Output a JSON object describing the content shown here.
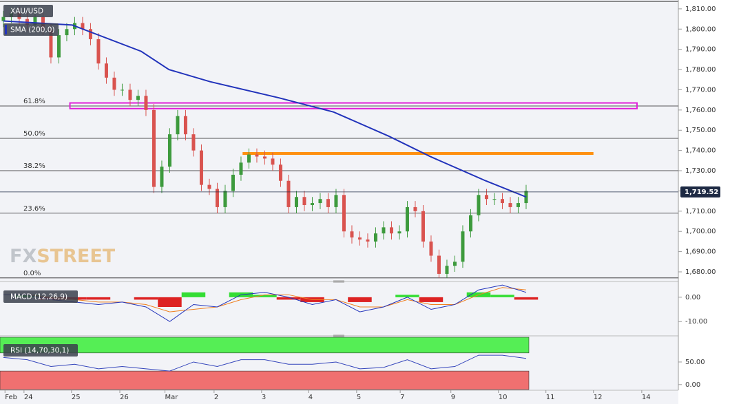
{
  "chart_data": [
    {
      "type": "candlestick",
      "title": "XAU/USD",
      "up_color": "#3d9a3d",
      "down_color": "#d9534f",
      "open": [
        1804,
        1806,
        1808,
        1805,
        1802,
        1806,
        1800,
        1786,
        1797,
        1800,
        1803,
        1800,
        1795,
        1783,
        1776,
        1770,
        1770,
        1765,
        1767,
        1760,
        1722,
        1732,
        1748,
        1757,
        1748,
        1740,
        1723,
        1721,
        1712,
        1720,
        1728,
        1734,
        1738,
        1737,
        1736,
        1733,
        1725,
        1712,
        1717,
        1713,
        1714,
        1716,
        1712,
        1718,
        1700,
        1697,
        1696,
        1695,
        1699,
        1702,
        1699,
        1700,
        1712,
        1710,
        1695,
        1688,
        1679,
        1683,
        1685,
        1700,
        1708,
        1718,
        1716,
        1716,
        1714,
        1712,
        1714
      ],
      "high": [
        1809,
        1811,
        1811,
        1808,
        1809,
        1809,
        1803,
        1800,
        1803,
        1806,
        1806,
        1803,
        1798,
        1786,
        1779,
        1773,
        1773,
        1770,
        1770,
        1763,
        1735,
        1751,
        1760,
        1760,
        1751,
        1743,
        1726,
        1724,
        1723,
        1731,
        1737,
        1741,
        1741,
        1740,
        1739,
        1736,
        1728,
        1720,
        1720,
        1717,
        1719,
        1719,
        1721,
        1721,
        1703,
        1700,
        1699,
        1702,
        1705,
        1705,
        1703,
        1715,
        1715,
        1713,
        1698,
        1691,
        1686,
        1688,
        1703,
        1711,
        1721,
        1721,
        1719,
        1719,
        1717,
        1717,
        1723
      ],
      "low": [
        1801,
        1803,
        1802,
        1799,
        1799,
        1797,
        1783,
        1783,
        1794,
        1797,
        1797,
        1792,
        1780,
        1773,
        1767,
        1767,
        1762,
        1762,
        1757,
        1719,
        1719,
        1729,
        1745,
        1745,
        1737,
        1720,
        1718,
        1709,
        1709,
        1717,
        1725,
        1731,
        1734,
        1733,
        1730,
        1722,
        1709,
        1709,
        1710,
        1710,
        1711,
        1709,
        1709,
        1697,
        1694,
        1693,
        1692,
        1692,
        1696,
        1696,
        1696,
        1697,
        1707,
        1692,
        1685,
        1677,
        1677,
        1680,
        1682,
        1697,
        1705,
        1713,
        1713,
        1711,
        1709,
        1709,
        1711
      ],
      "close": [
        1806,
        1808,
        1805,
        1802,
        1806,
        1800,
        1786,
        1797,
        1800,
        1803,
        1800,
        1795,
        1783,
        1776,
        1770,
        1770,
        1765,
        1767,
        1760,
        1722,
        1732,
        1748,
        1757,
        1748,
        1740,
        1723,
        1721,
        1712,
        1720,
        1728,
        1734,
        1738,
        1737,
        1736,
        1733,
        1725,
        1712,
        1717,
        1713,
        1714,
        1716,
        1712,
        1718,
        1700,
        1697,
        1696,
        1695,
        1699,
        1702,
        1699,
        1700,
        1712,
        1710,
        1695,
        1688,
        1679,
        1683,
        1685,
        1700,
        1708,
        1718,
        1716,
        1716,
        1714,
        1712,
        1714,
        1720
      ],
      "overlay": {
        "name": "SMA (200,0)",
        "color": "#2233bb",
        "x": [
          0,
          8.7,
          17.4,
          20.9,
          26.1,
          34.8,
          41.7,
          48.7,
          53.9,
          60.9,
          66
        ],
        "values": [
          1804,
          1802,
          1789,
          1780,
          1774,
          1766,
          1759,
          1747,
          1737,
          1725,
          1717
        ]
      },
      "levels": [
        {
          "label": "61.8%",
          "value": 1762
        },
        {
          "label": "50.0%",
          "value": 1746
        },
        {
          "label": "38.2%",
          "value": 1730
        },
        {
          "label": "23.6%",
          "value": 1709
        },
        {
          "label": "0.0%",
          "value": 1677
        }
      ],
      "zone": {
        "color": "#e020d8",
        "x": [
          8.4,
          80
        ],
        "from": 1760.7,
        "to": 1763.5
      },
      "resistance": {
        "color": "#ff9010",
        "x": [
          30.2,
          74.5
        ],
        "value": 1738.5
      },
      "last_price": {
        "value": 1719.52,
        "label": "1,719.52"
      },
      "watermark": [
        "FX",
        "STREET"
      ],
      "xlim": [
        -0.43,
        85.22
      ],
      "xticks": [
        {
          "value": 0.2,
          "label": "Feb"
        },
        {
          "value": 2.6,
          "label": "24"
        },
        {
          "value": 8.6,
          "label": "25"
        },
        {
          "value": 14.7,
          "label": "26"
        },
        {
          "value": 20.4,
          "label": "Mar"
        },
        {
          "value": 26.6,
          "label": "2"
        },
        {
          "value": 32.6,
          "label": "3"
        },
        {
          "value": 38.5,
          "label": "4"
        },
        {
          "value": 44.6,
          "label": "5"
        },
        {
          "value": 50.1,
          "label": "7"
        },
        {
          "value": 56.5,
          "label": "9"
        },
        {
          "value": 62.5,
          "label": "10"
        },
        {
          "value": 68.5,
          "label": "11"
        },
        {
          "value": 74.5,
          "label": "12"
        },
        {
          "value": 80.6,
          "label": "14"
        }
      ],
      "ylim": [
        1676.6,
        1813.7
      ],
      "yticks": [
        {
          "value": 1680,
          "label": "1,680.00"
        },
        {
          "value": 1690,
          "label": "1,690.00"
        },
        {
          "value": 1700,
          "label": "1,700.00"
        },
        {
          "value": 1710,
          "label": "1,710.00"
        },
        {
          "value": 1720,
          "label": "1,720.00"
        },
        {
          "value": 1730,
          "label": "1,730.00"
        },
        {
          "value": 1740,
          "label": "1,740.00"
        },
        {
          "value": 1750,
          "label": "1,750.00"
        },
        {
          "value": 1760,
          "label": "1,760.00"
        },
        {
          "value": 1770,
          "label": "1,770.00"
        },
        {
          "value": 1780,
          "label": "1,780.00"
        },
        {
          "value": 1790,
          "label": "1,790.00"
        },
        {
          "value": 1800,
          "label": "1,800.00"
        },
        {
          "value": 1810,
          "label": "1,810.00"
        }
      ]
    },
    {
      "type": "macd",
      "title": "MACD (12,26,9)",
      "x": [
        0,
        3,
        6,
        9,
        12,
        15,
        18,
        21,
        24,
        27,
        30,
        33,
        36,
        39,
        42,
        45,
        48,
        51,
        54,
        57,
        60,
        63,
        66
      ],
      "histogram": [
        0,
        1,
        -1,
        -1,
        -1,
        0,
        -1,
        -4,
        2,
        0,
        2,
        1,
        -1,
        -2,
        0,
        -2,
        0,
        1,
        -2,
        0,
        2,
        1,
        -1
      ],
      "macd_line": {
        "color": "#2233bb",
        "values": [
          1,
          1,
          -1,
          -2,
          -3,
          -2,
          -4,
          -10,
          -3,
          -4,
          1,
          2,
          0,
          -3,
          -1,
          -6,
          -4,
          0,
          -5,
          -3,
          3,
          5,
          2
        ]
      },
      "signal_line": {
        "color": "#f08020",
        "values": [
          1,
          1,
          0,
          -1,
          -2,
          -2,
          -3,
          -6,
          -5,
          -4,
          -1,
          1,
          1,
          -1,
          -1,
          -4,
          -4,
          -1,
          -3,
          -3,
          1,
          4,
          3
        ]
      },
      "up_color": "#33dd33",
      "down_color": "#dd2222",
      "ylim": [
        -15.6,
        5.9
      ],
      "yticks": [
        {
          "value": 0,
          "label": "0.00"
        },
        {
          "value": -10,
          "label": "-10.00"
        }
      ]
    },
    {
      "type": "rsi",
      "title": "RSI (14,70,30,1)",
      "x": [
        0,
        3,
        6,
        9,
        12,
        15,
        18,
        21,
        24,
        27,
        30,
        33,
        36,
        39,
        42,
        45,
        48,
        51,
        54,
        57,
        60,
        63,
        66
      ],
      "values": [
        60,
        55,
        40,
        45,
        35,
        40,
        35,
        30,
        50,
        40,
        55,
        55,
        45,
        45,
        50,
        35,
        38,
        55,
        35,
        40,
        65,
        65,
        58
      ],
      "color": "#3344bb",
      "overbought": 70,
      "oversold": 30,
      "upper_color": "#55ee55",
      "lower_color": "#f07070",
      "ylim": [
        -10.9,
        104.7
      ],
      "yticks": [
        {
          "value": 50,
          "label": "50.00"
        },
        {
          "value": 0,
          "label": "0.00"
        }
      ]
    }
  ]
}
